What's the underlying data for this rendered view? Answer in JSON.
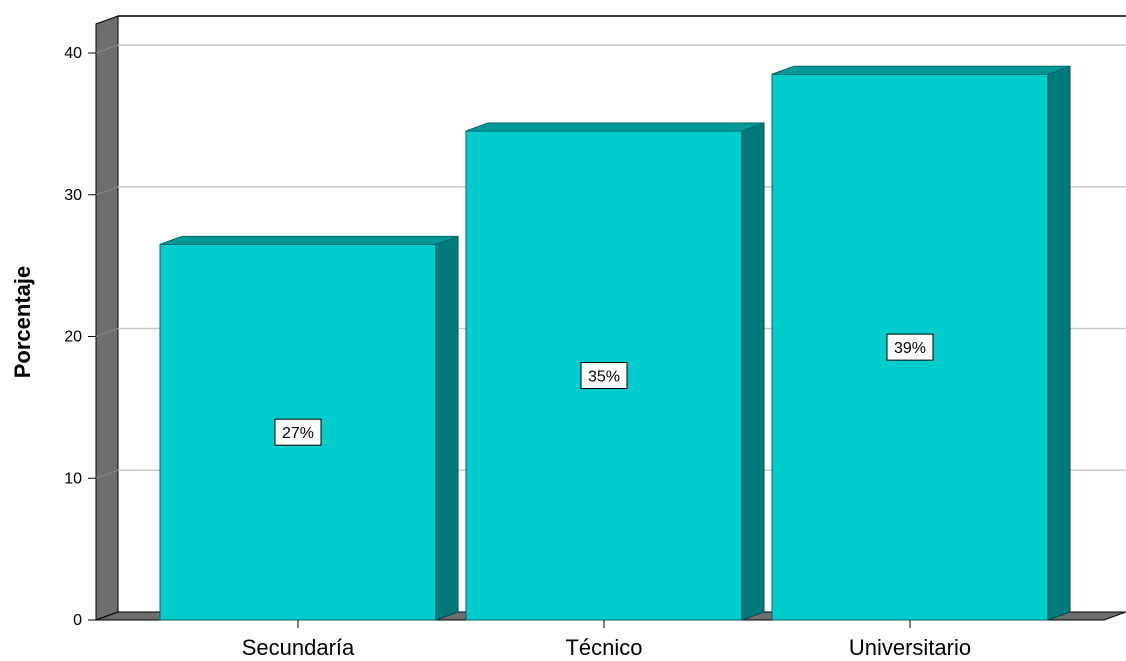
{
  "chart_data": {
    "type": "bar",
    "ylabel": "Porcentaje",
    "xlabel": "",
    "categories": [
      "Secundaría",
      "Técnico",
      "Universitario"
    ],
    "values": [
      26.5,
      34.5,
      38.5
    ],
    "data_labels": [
      "27%",
      "35%",
      "39%"
    ],
    "ylim": [
      0,
      40
    ],
    "yticks": [
      "0",
      "10",
      "20",
      "30",
      "40"
    ],
    "grid": true,
    "style": "3d",
    "colors": {
      "bar_front": "#00CCCC",
      "bar_side": "#007A7A",
      "bar_top": "#009999",
      "wall": "#6E6E6E",
      "grid": "#C8C8C8"
    }
  }
}
